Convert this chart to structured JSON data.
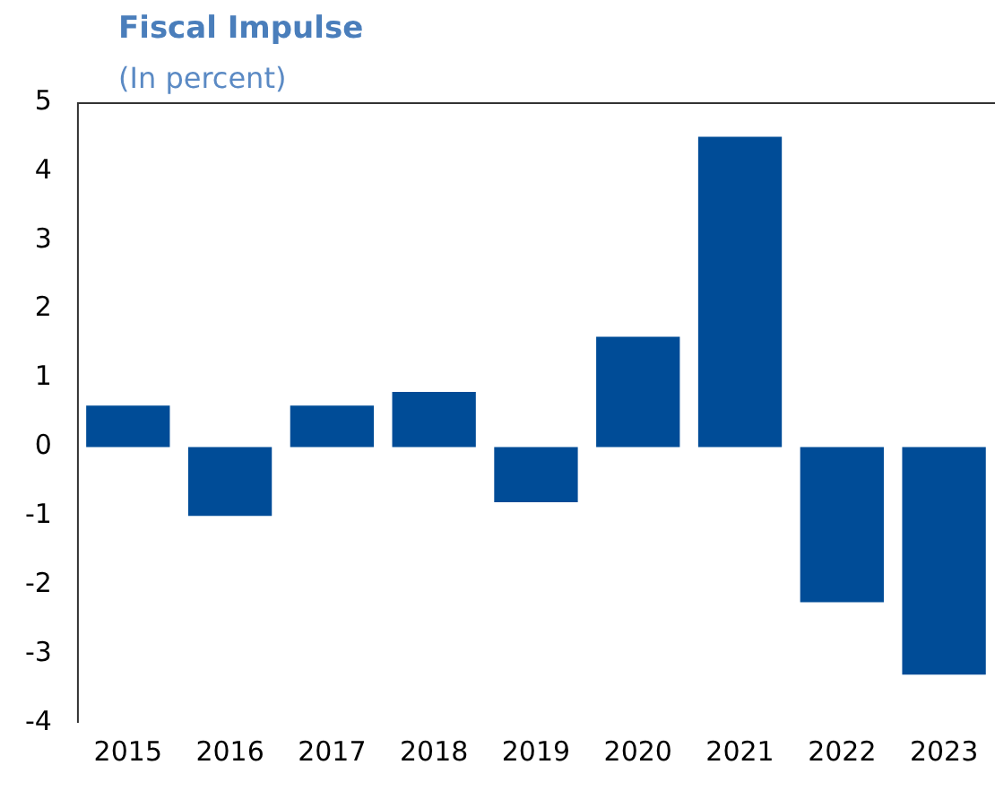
{
  "chart_data": {
    "type": "bar",
    "title": "Fiscal Impulse",
    "subtitle": "(In percent)",
    "categories": [
      "2015",
      "2016",
      "2017",
      "2018",
      "2019",
      "2020",
      "2021",
      "2022",
      "2023"
    ],
    "values": [
      0.6,
      -1.0,
      0.6,
      0.8,
      -0.8,
      1.6,
      4.5,
      -2.25,
      -3.3
    ],
    "color": "#004c97",
    "ylim": [
      -4,
      5
    ],
    "yticks": [
      -4,
      -3,
      -2,
      -1,
      0,
      1,
      2,
      3,
      4,
      5
    ],
    "grid": false,
    "legend": false
  }
}
